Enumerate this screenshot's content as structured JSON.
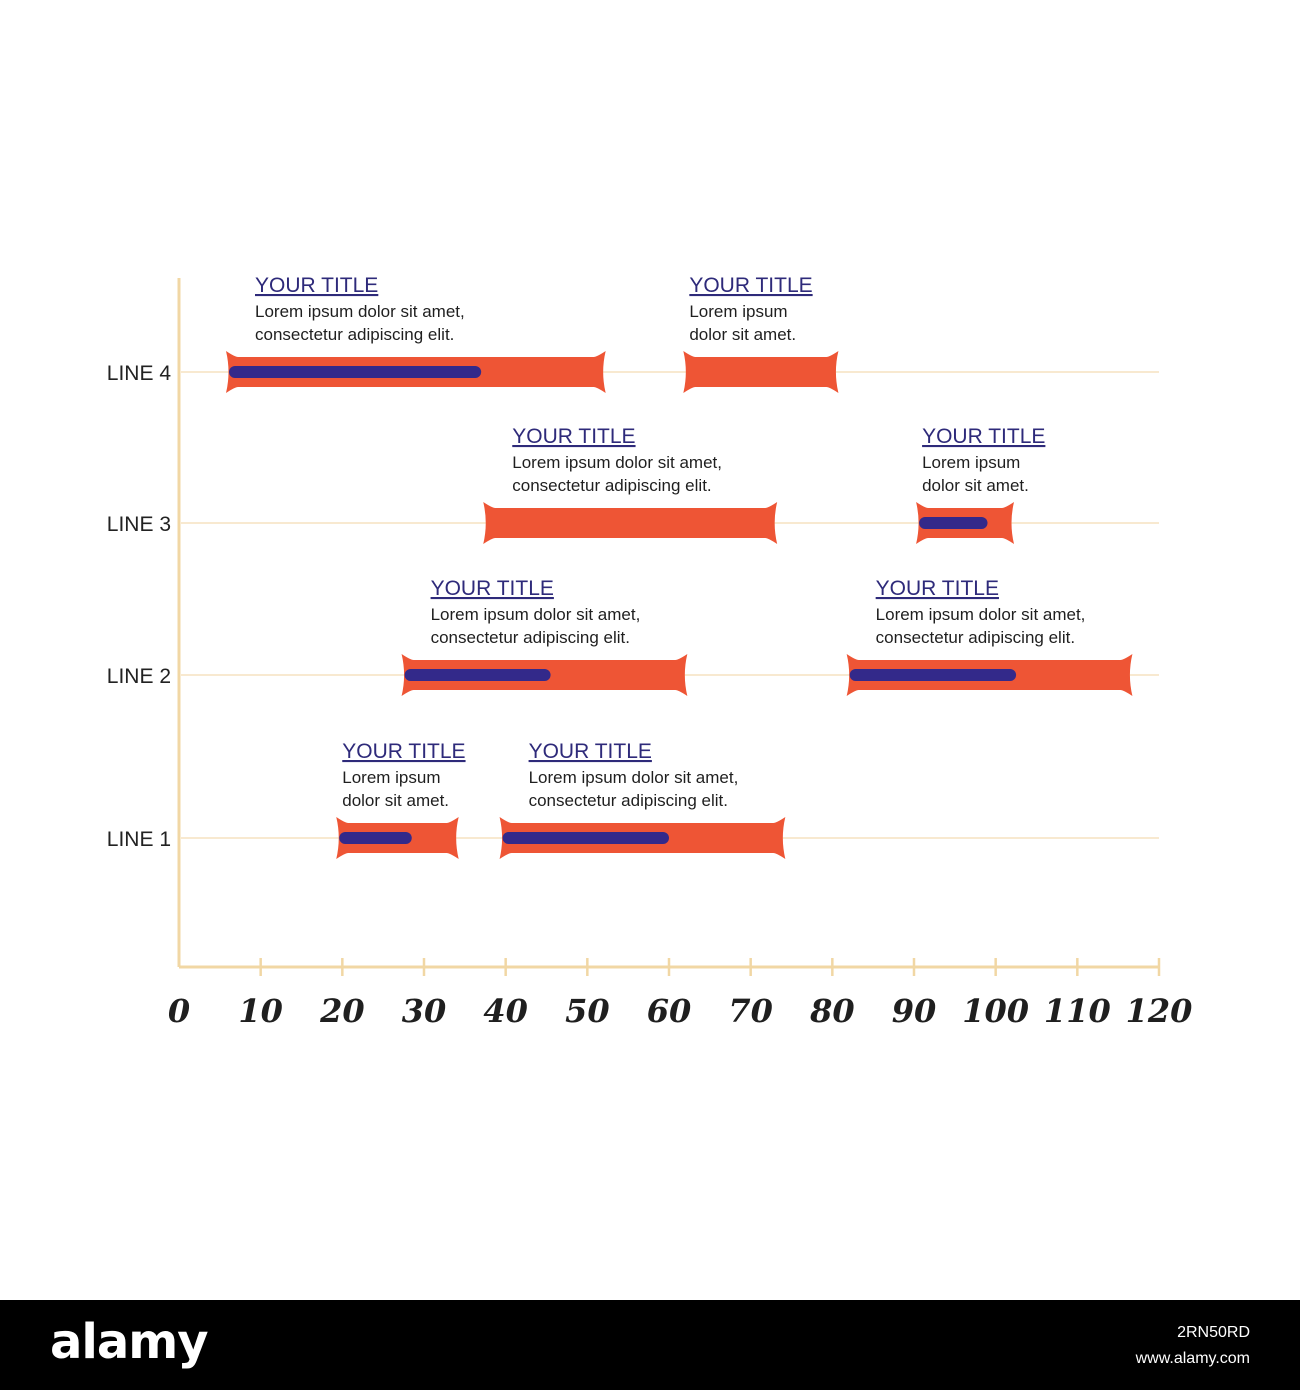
{
  "colors": {
    "axis": "#f1d7a4",
    "gridline": "#f5e2c0",
    "bar": "#ee5535",
    "progress": "#33298a",
    "title": "#2e2a7a",
    "text": "#1f1f1f"
  },
  "chart_data": {
    "type": "bar",
    "orientation": "horizontal-range",
    "title": "",
    "xlabel": "",
    "ylabel": "",
    "xlim": [
      0,
      120
    ],
    "xticks": [
      0,
      10,
      20,
      30,
      40,
      50,
      60,
      70,
      80,
      90,
      100,
      110,
      120
    ],
    "rows": [
      "LINE 1",
      "LINE 2",
      "LINE 3",
      "LINE 4"
    ],
    "grid": true,
    "tasks": [
      {
        "row": "LINE 4",
        "start": 6,
        "end": 52,
        "progress_end": 37,
        "title": "YOUR TITLE",
        "text": [
          "Lorem ipsum dolor sit amet,",
          "consectetur adipiscing elit."
        ]
      },
      {
        "row": "LINE 4",
        "start": 62,
        "end": 80.5,
        "progress_end": null,
        "title": "YOUR TITLE",
        "text": [
          "Lorem ipsum",
          "dolor sit amet."
        ]
      },
      {
        "row": "LINE 3",
        "start": 37.5,
        "end": 73,
        "progress_end": null,
        "title": "YOUR TITLE",
        "text": [
          "Lorem ipsum dolor sit amet,",
          "consectetur adipiscing elit."
        ]
      },
      {
        "row": "LINE 3",
        "start": 90.5,
        "end": 102,
        "progress_end": 99,
        "title": "YOUR TITLE",
        "text": [
          "Lorem ipsum",
          "dolor sit amet."
        ]
      },
      {
        "row": "LINE 2",
        "start": 27.5,
        "end": 62,
        "progress_end": 45.5,
        "title": "YOUR TITLE",
        "text": [
          "Lorem ipsum dolor sit amet,",
          "consectetur adipiscing elit."
        ]
      },
      {
        "row": "LINE 2",
        "start": 82,
        "end": 116.5,
        "progress_end": 102.5,
        "title": "YOUR TITLE",
        "text": [
          "Lorem ipsum dolor sit amet,",
          "consectetur adipiscing elit."
        ]
      },
      {
        "row": "LINE 1",
        "start": 19.5,
        "end": 34,
        "progress_end": 28.5,
        "title": "YOUR TITLE",
        "text": [
          "Lorem ipsum",
          "dolor sit amet."
        ]
      },
      {
        "row": "LINE 1",
        "start": 39.5,
        "end": 74,
        "progress_end": 60,
        "title": "YOUR TITLE",
        "text": [
          "Lorem ipsum dolor sit amet,",
          "consectetur adipiscing elit."
        ]
      }
    ]
  },
  "footer": {
    "logo": "alamy",
    "image_id": "2RN50RD",
    "site": "www.alamy.com"
  }
}
